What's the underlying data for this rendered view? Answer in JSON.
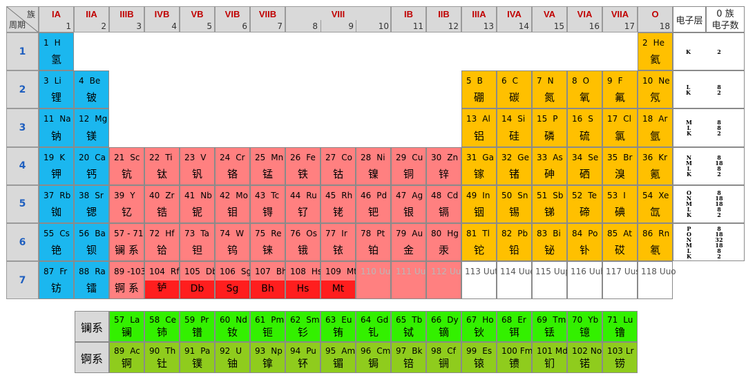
{
  "corner": {
    "zu": "族",
    "zhouqi": "周期"
  },
  "groups": [
    {
      "label": "IA",
      "num": "1"
    },
    {
      "label": "IIA",
      "num": "2"
    },
    {
      "label": "IIIB",
      "num": "3"
    },
    {
      "label": "IVB",
      "num": "4"
    },
    {
      "label": "VB",
      "num": "5"
    },
    {
      "label": "VIB",
      "num": "6"
    },
    {
      "label": "VIIB",
      "num": "7"
    },
    {
      "label": "VIII",
      "num": "8"
    },
    {
      "label": "",
      "num": "9"
    },
    {
      "label": "",
      "num": "10"
    },
    {
      "label": "IB",
      "num": "11"
    },
    {
      "label": "IIB",
      "num": "12"
    },
    {
      "label": "IIIA",
      "num": "13"
    },
    {
      "label": "IVA",
      "num": "14"
    },
    {
      "label": "VA",
      "num": "15"
    },
    {
      "label": "VIA",
      "num": "16"
    },
    {
      "label": "VIIA",
      "num": "17"
    },
    {
      "label": "O",
      "num": "18"
    }
  ],
  "shell_header": "电子层",
  "count_header": [
    "0 族",
    "电子数"
  ],
  "periods": [
    "1",
    "2",
    "3",
    "4",
    "5",
    "6",
    "7"
  ],
  "shells": [
    {
      "letters": "K",
      "counts": "2"
    },
    {
      "letters": "L\nK",
      "counts": "8\n2"
    },
    {
      "letters": "M\nL\nK",
      "counts": "8\n8\n2"
    },
    {
      "letters": "N\nM\nL\nK",
      "counts": "8\n18\n8\n2"
    },
    {
      "letters": "O\nN\nM\nL\nK",
      "counts": "8\n18\n18\n8\n2"
    },
    {
      "letters": "P\nO\nN\nM\nL\nK",
      "counts": "8\n18\n32\n18\n8\n2"
    }
  ],
  "elements": [
    {
      "n": "1",
      "s": "H",
      "c": "氢",
      "p": 1,
      "g": 1,
      "k": "blue"
    },
    {
      "n": "2",
      "s": "He",
      "c": "氦",
      "p": 1,
      "g": 18,
      "k": "yellow"
    },
    {
      "n": "3",
      "s": "Li",
      "c": "锂",
      "p": 2,
      "g": 1,
      "k": "blue"
    },
    {
      "n": "4",
      "s": "Be",
      "c": "铍",
      "p": 2,
      "g": 2,
      "k": "blue"
    },
    {
      "n": "5",
      "s": "B",
      "c": "硼",
      "p": 2,
      "g": 13,
      "k": "yellow"
    },
    {
      "n": "6",
      "s": "C",
      "c": "碳",
      "p": 2,
      "g": 14,
      "k": "yellow"
    },
    {
      "n": "7",
      "s": "N",
      "c": "氮",
      "p": 2,
      "g": 15,
      "k": "yellow"
    },
    {
      "n": "8",
      "s": "O",
      "c": "氧",
      "p": 2,
      "g": 16,
      "k": "yellow"
    },
    {
      "n": "9",
      "s": "F",
      "c": "氟",
      "p": 2,
      "g": 17,
      "k": "yellow"
    },
    {
      "n": "10",
      "s": "Ne",
      "c": "氖",
      "p": 2,
      "g": 18,
      "k": "yellow"
    },
    {
      "n": "11",
      "s": "Na",
      "c": "钠",
      "p": 3,
      "g": 1,
      "k": "blue"
    },
    {
      "n": "12",
      "s": "Mg",
      "c": "镁",
      "p": 3,
      "g": 2,
      "k": "blue"
    },
    {
      "n": "13",
      "s": "Al",
      "c": "铝",
      "p": 3,
      "g": 13,
      "k": "yellow"
    },
    {
      "n": "14",
      "s": "Si",
      "c": "硅",
      "p": 3,
      "g": 14,
      "k": "yellow"
    },
    {
      "n": "15",
      "s": "P",
      "c": "磷",
      "p": 3,
      "g": 15,
      "k": "yellow"
    },
    {
      "n": "16",
      "s": "S",
      "c": "硫",
      "p": 3,
      "g": 16,
      "k": "yellow"
    },
    {
      "n": "17",
      "s": "Cl",
      "c": "氯",
      "p": 3,
      "g": 17,
      "k": "yellow"
    },
    {
      "n": "18",
      "s": "Ar",
      "c": "氩",
      "p": 3,
      "g": 18,
      "k": "yellow"
    },
    {
      "n": "19",
      "s": "K",
      "c": "钾",
      "p": 4,
      "g": 1,
      "k": "blue"
    },
    {
      "n": "20",
      "s": "Ca",
      "c": "钙",
      "p": 4,
      "g": 2,
      "k": "blue"
    },
    {
      "n": "21",
      "s": "Sc",
      "c": "钪",
      "p": 4,
      "g": 3,
      "k": "pink"
    },
    {
      "n": "22",
      "s": "Ti",
      "c": "钛",
      "p": 4,
      "g": 4,
      "k": "pink"
    },
    {
      "n": "23",
      "s": "V",
      "c": "钒",
      "p": 4,
      "g": 5,
      "k": "pink"
    },
    {
      "n": "24",
      "s": "Cr",
      "c": "铬",
      "p": 4,
      "g": 6,
      "k": "pink"
    },
    {
      "n": "25",
      "s": "Mn",
      "c": "锰",
      "p": 4,
      "g": 7,
      "k": "pink"
    },
    {
      "n": "26",
      "s": "Fe",
      "c": "铁",
      "p": 4,
      "g": 8,
      "k": "pink"
    },
    {
      "n": "27",
      "s": "Co",
      "c": "钴",
      "p": 4,
      "g": 9,
      "k": "pink"
    },
    {
      "n": "28",
      "s": "Ni",
      "c": "镍",
      "p": 4,
      "g": 10,
      "k": "pink"
    },
    {
      "n": "29",
      "s": "Cu",
      "c": "铜",
      "p": 4,
      "g": 11,
      "k": "pink"
    },
    {
      "n": "30",
      "s": "Zn",
      "c": "锌",
      "p": 4,
      "g": 12,
      "k": "pink"
    },
    {
      "n": "31",
      "s": "Ga",
      "c": "镓",
      "p": 4,
      "g": 13,
      "k": "yellow"
    },
    {
      "n": "32",
      "s": "Ge",
      "c": "锗",
      "p": 4,
      "g": 14,
      "k": "yellow"
    },
    {
      "n": "33",
      "s": "As",
      "c": "砷",
      "p": 4,
      "g": 15,
      "k": "yellow"
    },
    {
      "n": "34",
      "s": "Se",
      "c": "硒",
      "p": 4,
      "g": 16,
      "k": "yellow"
    },
    {
      "n": "35",
      "s": "Br",
      "c": "溴",
      "p": 4,
      "g": 17,
      "k": "yellow"
    },
    {
      "n": "36",
      "s": "Kr",
      "c": "氪",
      "p": 4,
      "g": 18,
      "k": "yellow"
    },
    {
      "n": "37",
      "s": "Rb",
      "c": "铷",
      "p": 5,
      "g": 1,
      "k": "blue"
    },
    {
      "n": "38",
      "s": "Sr",
      "c": "锶",
      "p": 5,
      "g": 2,
      "k": "blue"
    },
    {
      "n": "39",
      "s": "Y",
      "c": "钇",
      "p": 5,
      "g": 3,
      "k": "pink"
    },
    {
      "n": "40",
      "s": "Zr",
      "c": "锆",
      "p": 5,
      "g": 4,
      "k": "pink"
    },
    {
      "n": "41",
      "s": "Nb",
      "c": "铌",
      "p": 5,
      "g": 5,
      "k": "pink"
    },
    {
      "n": "42",
      "s": "Mo",
      "c": "钼",
      "p": 5,
      "g": 6,
      "k": "pink"
    },
    {
      "n": "43",
      "s": "Tc",
      "c": "锝",
      "p": 5,
      "g": 7,
      "k": "pink"
    },
    {
      "n": "44",
      "s": "Ru",
      "c": "钌",
      "p": 5,
      "g": 8,
      "k": "pink"
    },
    {
      "n": "45",
      "s": "Rh",
      "c": "铑",
      "p": 5,
      "g": 9,
      "k": "pink"
    },
    {
      "n": "46",
      "s": "Pd",
      "c": "钯",
      "p": 5,
      "g": 10,
      "k": "pink"
    },
    {
      "n": "47",
      "s": "Ag",
      "c": "银",
      "p": 5,
      "g": 11,
      "k": "pink"
    },
    {
      "n": "48",
      "s": "Cd",
      "c": "镉",
      "p": 5,
      "g": 12,
      "k": "pink"
    },
    {
      "n": "49",
      "s": "In",
      "c": "铟",
      "p": 5,
      "g": 13,
      "k": "yellow"
    },
    {
      "n": "50",
      "s": "Sn",
      "c": "锡",
      "p": 5,
      "g": 14,
      "k": "yellow"
    },
    {
      "n": "51",
      "s": "Sb",
      "c": "锑",
      "p": 5,
      "g": 15,
      "k": "yellow"
    },
    {
      "n": "52",
      "s": "Te",
      "c": "碲",
      "p": 5,
      "g": 16,
      "k": "yellow"
    },
    {
      "n": "53",
      "s": "I",
      "c": "碘",
      "p": 5,
      "g": 17,
      "k": "yellow"
    },
    {
      "n": "54",
      "s": "Xe",
      "c": "氙",
      "p": 5,
      "g": 18,
      "k": "yellow"
    },
    {
      "n": "55",
      "s": "Cs",
      "c": "铯",
      "p": 6,
      "g": 1,
      "k": "blue"
    },
    {
      "n": "56",
      "s": "Ba",
      "c": "钡",
      "p": 6,
      "g": 2,
      "k": "blue"
    },
    {
      "n": "57 - 71",
      "s": "",
      "c": "镧 系",
      "p": 6,
      "g": 3,
      "k": "pink"
    },
    {
      "n": "72",
      "s": "Hf",
      "c": "铪",
      "p": 6,
      "g": 4,
      "k": "pink"
    },
    {
      "n": "73",
      "s": "Ta",
      "c": "钽",
      "p": 6,
      "g": 5,
      "k": "pink"
    },
    {
      "n": "74",
      "s": "W",
      "c": "钨",
      "p": 6,
      "g": 6,
      "k": "pink"
    },
    {
      "n": "75",
      "s": "Re",
      "c": "铼",
      "p": 6,
      "g": 7,
      "k": "pink"
    },
    {
      "n": "76",
      "s": "Os",
      "c": "锇",
      "p": 6,
      "g": 8,
      "k": "pink"
    },
    {
      "n": "77",
      "s": "Ir",
      "c": "铱",
      "p": 6,
      "g": 9,
      "k": "pink"
    },
    {
      "n": "78",
      "s": "Pt",
      "c": "铂",
      "p": 6,
      "g": 10,
      "k": "pink"
    },
    {
      "n": "79",
      "s": "Au",
      "c": "金",
      "p": 6,
      "g": 11,
      "k": "pink"
    },
    {
      "n": "80",
      "s": "Hg",
      "c": "汞",
      "p": 6,
      "g": 12,
      "k": "pink"
    },
    {
      "n": "81",
      "s": "Tl",
      "c": "铊",
      "p": 6,
      "g": 13,
      "k": "yellow"
    },
    {
      "n": "82",
      "s": "Pb",
      "c": "铅",
      "p": 6,
      "g": 14,
      "k": "yellow"
    },
    {
      "n": "83",
      "s": "Bi",
      "c": "铋",
      "p": 6,
      "g": 15,
      "k": "yellow"
    },
    {
      "n": "84",
      "s": "Po",
      "c": "钋",
      "p": 6,
      "g": 16,
      "k": "yellow"
    },
    {
      "n": "85",
      "s": "At",
      "c": "砹",
      "p": 6,
      "g": 17,
      "k": "yellow"
    },
    {
      "n": "86",
      "s": "Rn",
      "c": "氡",
      "p": 6,
      "g": 18,
      "k": "yellow"
    },
    {
      "n": "87",
      "s": "Fr",
      "c": "钫",
      "p": 7,
      "g": 1,
      "k": "blue"
    },
    {
      "n": "88",
      "s": "Ra",
      "c": "镭",
      "p": 7,
      "g": 2,
      "k": "blue"
    },
    {
      "n": "89 -103",
      "s": "",
      "c": "锕 系",
      "p": 7,
      "g": 3,
      "k": "pink"
    },
    {
      "n": "104",
      "s": "Rf",
      "c": "𬬻",
      "p": 7,
      "g": 4,
      "k": "pink",
      "lower": "red"
    },
    {
      "n": "105",
      "s": "Db",
      "c": "Db",
      "p": 7,
      "g": 5,
      "k": "pink",
      "lower": "red"
    },
    {
      "n": "106",
      "s": "Sg",
      "c": "Sg",
      "p": 7,
      "g": 6,
      "k": "pink",
      "lower": "red"
    },
    {
      "n": "107",
      "s": "Bh",
      "c": "Bh",
      "p": 7,
      "g": 7,
      "k": "pink",
      "lower": "red"
    },
    {
      "n": "108",
      "s": "Hs",
      "c": "Hs",
      "p": 7,
      "g": 8,
      "k": "pink",
      "lower": "red"
    },
    {
      "n": "109",
      "s": "Mt",
      "c": "Mt",
      "p": 7,
      "g": 9,
      "k": "pink",
      "lower": "red"
    },
    {
      "n": "110",
      "s": "Uun",
      "c": "",
      "p": 7,
      "g": 10,
      "k": "pink",
      "gray": true
    },
    {
      "n": "111",
      "s": "Uuu",
      "c": "",
      "p": 7,
      "g": 11,
      "k": "pink",
      "gray": true
    },
    {
      "n": "112",
      "s": "Uub",
      "c": "",
      "p": 7,
      "g": 12,
      "k": "pink",
      "gray": true
    },
    {
      "n": "113",
      "s": "Uut",
      "c": "",
      "p": 7,
      "g": 13,
      "k": "white"
    },
    {
      "n": "114",
      "s": "Uuq",
      "c": "",
      "p": 7,
      "g": 14,
      "k": "white"
    },
    {
      "n": "115",
      "s": "Uup",
      "c": "",
      "p": 7,
      "g": 15,
      "k": "white"
    },
    {
      "n": "116",
      "s": "Uuh",
      "c": "",
      "p": 7,
      "g": 16,
      "k": "white"
    },
    {
      "n": "117",
      "s": "Uus",
      "c": "",
      "p": 7,
      "g": 17,
      "k": "white"
    },
    {
      "n": "118",
      "s": "Uuo",
      "c": "",
      "p": 7,
      "g": 18,
      "k": "white"
    }
  ],
  "lanthanides": {
    "label": "镧系",
    "items": [
      {
        "n": "57",
        "s": "La",
        "c": "镧"
      },
      {
        "n": "58",
        "s": "Ce",
        "c": "铈"
      },
      {
        "n": "59",
        "s": "Pr",
        "c": "镨"
      },
      {
        "n": "60",
        "s": "Nd",
        "c": "钕"
      },
      {
        "n": "61",
        "s": "Pm",
        "c": "钷"
      },
      {
        "n": "62",
        "s": "Sm",
        "c": "钐"
      },
      {
        "n": "63",
        "s": "Eu",
        "c": "铕"
      },
      {
        "n": "64",
        "s": "Gd",
        "c": "钆"
      },
      {
        "n": "65",
        "s": "Tb",
        "c": "铽"
      },
      {
        "n": "66",
        "s": "Dy",
        "c": "镝"
      },
      {
        "n": "67",
        "s": "Ho",
        "c": "钬"
      },
      {
        "n": "68",
        "s": "Er",
        "c": "铒"
      },
      {
        "n": "69",
        "s": "Tm",
        "c": "铥"
      },
      {
        "n": "70",
        "s": "Yb",
        "c": "镱"
      },
      {
        "n": "71",
        "s": "Lu",
        "c": "镥"
      }
    ]
  },
  "actinides": {
    "label": "锕系",
    "items": [
      {
        "n": "89",
        "s": "Ac",
        "c": "锕"
      },
      {
        "n": "90",
        "s": "Th",
        "c": "钍"
      },
      {
        "n": "91",
        "s": "Pa",
        "c": "镤"
      },
      {
        "n": "92",
        "s": "U",
        "c": "铀"
      },
      {
        "n": "93",
        "s": "Np",
        "c": "镎"
      },
      {
        "n": "94",
        "s": "Pu",
        "c": "钚"
      },
      {
        "n": "95",
        "s": "Am",
        "c": "镅"
      },
      {
        "n": "96",
        "s": "Cm",
        "c": "锔"
      },
      {
        "n": "97",
        "s": "Bk",
        "c": "锫"
      },
      {
        "n": "98",
        "s": "Cf",
        "c": "锎"
      },
      {
        "n": "99",
        "s": "Es",
        "c": "锿"
      },
      {
        "n": "100",
        "s": "Fm",
        "c": "镄"
      },
      {
        "n": "101",
        "s": "Md",
        "c": "钔"
      },
      {
        "n": "102",
        "s": "No",
        "c": "锘"
      },
      {
        "n": "103",
        "s": "Lr",
        "c": "铹"
      }
    ]
  },
  "colors": {
    "blue": "#1bb7ef",
    "yellow": "#ffc000",
    "pink": "#ff8080",
    "red": "#ff1e1e",
    "white": "#ffffff",
    "green": "#33f000",
    "olive": "#8fcc1d",
    "group_text": "#c00000",
    "period_text": "#1f5fbf"
  }
}
